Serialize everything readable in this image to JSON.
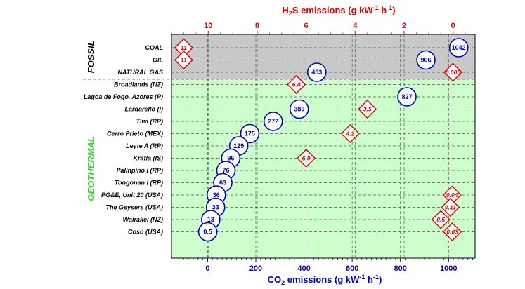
{
  "chart_data": {
    "type": "scatter",
    "top_axis": {
      "title": "H2S emissions  (g kW-1 h-1)",
      "ticks": [
        10,
        8,
        6,
        4,
        2,
        0
      ],
      "range": [
        11.5,
        -0.9
      ],
      "color": "#e00000"
    },
    "bottom_axis": {
      "title": "CO2 emissions  (g kW-1 h-1)",
      "ticks": [
        0,
        200,
        400,
        600,
        800,
        1000
      ],
      "range": [
        -150,
        1110
      ],
      "color": "#0000c0"
    },
    "groups": [
      {
        "name": "FOSSIL",
        "color": "#000000",
        "background": "#c8c8c8"
      },
      {
        "name": "GEOTHERMAL",
        "color": "#22dd22",
        "background": "#ccffcc"
      }
    ],
    "rows": [
      {
        "label": "COAL",
        "group": "FOSSIL",
        "co2": 1042,
        "co2_label": "1042",
        "h2s": 11,
        "h2s_label": "11"
      },
      {
        "label": "OIL",
        "group": "FOSSIL",
        "co2": 906,
        "co2_label": "906",
        "h2s": 11,
        "h2s_label": "11"
      },
      {
        "label": "NATURAL GAS",
        "group": "FOSSIL",
        "co2": 453,
        "co2_label": "453",
        "h2s": 0.005,
        "h2s_label": "0.005"
      },
      {
        "label": "Broadlands (NZ)",
        "group": "GEOTHERMAL",
        "co2": null,
        "co2_label": "",
        "h2s": 6.4,
        "h2s_label": "6.4"
      },
      {
        "label": "Lagoa de Fogo, Azores (P)",
        "group": "GEOTHERMAL",
        "co2": 827,
        "co2_label": "827",
        "h2s": null,
        "h2s_label": ""
      },
      {
        "label": "Lardarello (I)",
        "group": "GEOTHERMAL",
        "co2": 380,
        "co2_label": "380",
        "h2s": 3.5,
        "h2s_label": "3.5"
      },
      {
        "label": "Tiwi (RP)",
        "group": "GEOTHERMAL",
        "co2": 272,
        "co2_label": "272",
        "h2s": null,
        "h2s_label": ""
      },
      {
        "label": "Cerro Prieto (MEX)",
        "group": "GEOTHERMAL",
        "co2": 175,
        "co2_label": "175",
        "h2s": 4.2,
        "h2s_label": "4.2"
      },
      {
        "label": "Leyte A (RP)",
        "group": "GEOTHERMAL",
        "co2": 129,
        "co2_label": "129",
        "h2s": null,
        "h2s_label": ""
      },
      {
        "label": "Krafla (IS)",
        "group": "GEOTHERMAL",
        "co2": 96,
        "co2_label": "96",
        "h2s": 6.0,
        "h2s_label": "6.0"
      },
      {
        "label": "Palinpino I (RP)",
        "group": "GEOTHERMAL",
        "co2": 76,
        "co2_label": "76",
        "h2s": null,
        "h2s_label": ""
      },
      {
        "label": "Tongonan I (RP)",
        "group": "GEOTHERMAL",
        "co2": 63,
        "co2_label": "63",
        "h2s": null,
        "h2s_label": ""
      },
      {
        "label": "PG&E, Unit 20 (USA)",
        "group": "GEOTHERMAL",
        "co2": 36,
        "co2_label": "36",
        "h2s": 0.04,
        "h2s_label": "0.04"
      },
      {
        "label": "The Geysers (USA)",
        "group": "GEOTHERMAL",
        "co2": 33,
        "co2_label": "33",
        "h2s": 0.11,
        "h2s_label": "0.11"
      },
      {
        "label": "Wairakei (NZ)",
        "group": "GEOTHERMAL",
        "co2": 13,
        "co2_label": "13",
        "h2s": 0.5,
        "h2s_label": "0.5"
      },
      {
        "label": "Coso (USA)",
        "group": "GEOTHERMAL",
        "co2": 0.5,
        "co2_label": "0.5",
        "h2s": 0.03,
        "h2s_label": "0.03"
      }
    ],
    "grid": true
  }
}
